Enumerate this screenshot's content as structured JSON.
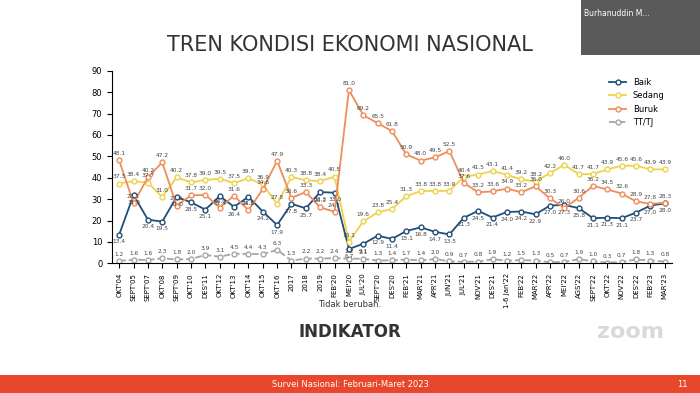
{
  "chart_data": {
    "type": "line",
    "title": "TREN KONDISI EKONOMI NASIONAL",
    "note": "Tidak berubah.",
    "logo": "INDIKATOR",
    "footer": "Survei Nasional: Februari-Maret 2023",
    "page": "11",
    "speaker": "Burhanuddin M...",
    "watermark": "zoom",
    "categories": [
      "OKT'04",
      "SEPT'05",
      "SEPT'07",
      "OKT'08",
      "SEPT'09",
      "OKT'10",
      "DES'11",
      "OKT'12",
      "OKT'13",
      "OKT'14",
      "OKT'15",
      "OKT'16",
      "2017",
      "2018",
      "2019",
      "FEB'20",
      "MEI'20",
      "JUL'20",
      "SEPT'20",
      "DES'20",
      "FEB'21",
      "MAR'21",
      "APR'21",
      "JUN'21",
      "JUL'21",
      "NOV'21",
      "DES'21",
      "1-6 Jan'22",
      "FEB'22",
      "MAR'22",
      "APR'22",
      "MEI'22",
      "AGS'22",
      "SEPT'22",
      "OKT'22",
      "NOV'22",
      "DES'22",
      "FEB'23",
      "MAR'23"
    ],
    "series": [
      {
        "name": "Baik",
        "color": "#1f4e79",
        "marker": "circle",
        "line_style": "solid",
        "values": [
          13.4,
          31.9,
          20.4,
          19.5,
          31.0,
          28.5,
          25.1,
          31.4,
          26.4,
          31.1,
          24.2,
          17.9,
          27.8,
          25.7,
          33.3,
          33.0,
          6.7,
          9.1,
          12.9,
          11.4,
          15.1,
          16.8,
          14.7,
          13.5,
          21.3,
          24.5,
          21.4,
          24.0,
          24.2,
          22.9,
          27.0,
          27.3,
          25.8,
          21.1,
          21.3,
          21.1,
          23.7,
          27.0,
          28.0
        ]
      },
      {
        "name": "Sedang",
        "color": "#f0d24a",
        "marker": "circle",
        "line_style": "solid",
        "values": [
          37.3,
          38.4,
          37.7,
          31.0,
          40.2,
          37.8,
          39.0,
          39.5,
          37.5,
          39.7,
          36.9,
          27.8,
          40.3,
          38.8,
          38.4,
          40.5,
          10.1,
          19.6,
          23.8,
          25.4,
          31.3,
          33.8,
          33.8,
          33.9,
          40.4,
          41.5,
          43.1,
          41.4,
          39.2,
          38.2,
          42.2,
          46.0,
          41.7,
          41.7,
          43.9,
          45.6,
          45.6,
          43.9,
          43.9
        ]
      },
      {
        "name": "Buruk",
        "color": "#f08c5a",
        "marker": "circle",
        "line_style": "solid",
        "values": [
          48.1,
          28.1,
          40.2,
          47.2,
          27.0,
          31.7,
          32.0,
          26.0,
          31.6,
          24.8,
          34.6,
          47.9,
          30.6,
          33.3,
          26.1,
          24.1,
          81.0,
          69.2,
          65.5,
          61.8,
          50.9,
          48.0,
          49.5,
          52.5,
          37.6,
          33.2,
          33.6,
          34.9,
          33.2,
          36.0,
          30.3,
          26.0,
          30.6,
          36.2,
          34.5,
          32.6,
          28.9,
          27.8,
          28.3
        ]
      },
      {
        "name": "TT/TJ",
        "color": "#a6a6a6",
        "marker": "circle",
        "line_style": "dashed",
        "values": [
          1.2,
          1.6,
          1.6,
          2.3,
          1.8,
          2.0,
          3.9,
          3.1,
          4.5,
          4.4,
          4.3,
          6.3,
          1.3,
          2.2,
          2.2,
          2.4,
          2.2,
          2.1,
          1.3,
          1.4,
          1.7,
          1.4,
          2.0,
          0.9,
          0.7,
          0.8,
          1.9,
          1.2,
          1.5,
          1.3,
          0.5,
          0.7,
          1.9,
          1.0,
          0.3,
          0.7,
          1.8,
          1.3,
          0.8
        ]
      }
    ],
    "ylim": [
      0,
      90
    ],
    "yticks": [
      0,
      10,
      20,
      30,
      40,
      50,
      60,
      70,
      80,
      90
    ],
    "grid": false,
    "legend": "upper right",
    "data_labels": true
  }
}
